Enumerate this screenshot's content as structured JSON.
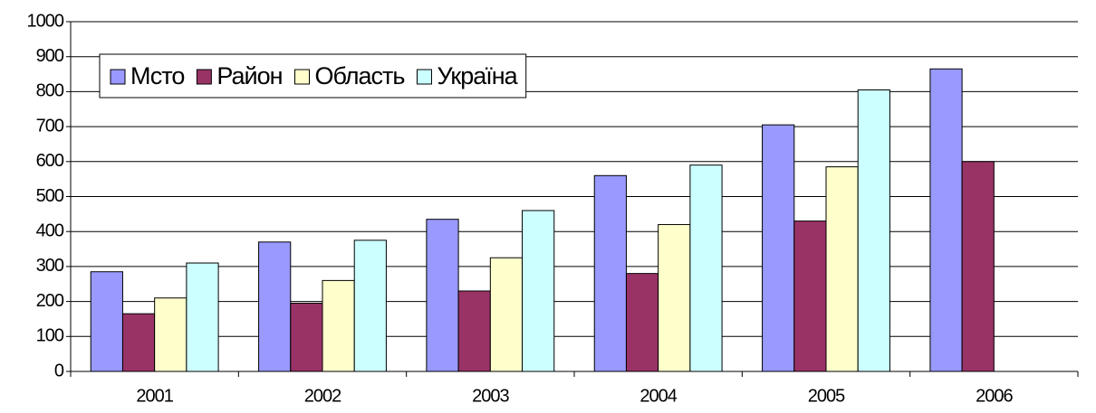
{
  "chart_data": {
    "type": "bar",
    "categories": [
      "2001",
      "2002",
      "2003",
      "2004",
      "2005",
      "2006"
    ],
    "series": [
      {
        "name": "Мсто",
        "color": "#9999ff",
        "values": [
          285,
          370,
          435,
          560,
          705,
          865
        ]
      },
      {
        "name": "Район",
        "color": "#993366",
        "values": [
          165,
          195,
          230,
          280,
          430,
          600
        ]
      },
      {
        "name": "Область",
        "color": "#ffffcc",
        "values": [
          210,
          260,
          325,
          420,
          585,
          null
        ]
      },
      {
        "name": "Україна",
        "color": "#ccffff",
        "values": [
          310,
          375,
          460,
          590,
          805,
          null
        ]
      }
    ],
    "ylim": [
      0,
      1000
    ],
    "yticks": [
      0,
      100,
      200,
      300,
      400,
      500,
      600,
      700,
      800,
      900,
      1000
    ],
    "grid": true,
    "legend": "top-left"
  }
}
